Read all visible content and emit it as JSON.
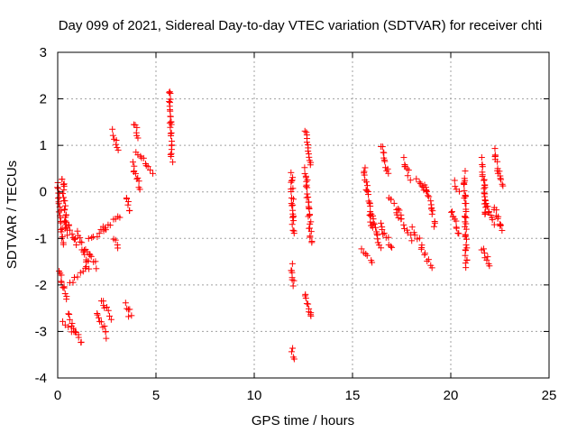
{
  "chart_data": {
    "type": "scatter",
    "title": "Day 099 of 2021, Sidereal Day-to-day VTEC variation (SDTVAR) for receiver chti",
    "xlabel": "GPS time / hours",
    "ylabel": "SDTVAR / TECUs",
    "xlim": [
      0,
      25
    ],
    "ylim": [
      -4,
      3
    ],
    "xticks": [
      0,
      5,
      10,
      15,
      20,
      25
    ],
    "yticks": [
      -4,
      -3,
      -2,
      -1,
      0,
      1,
      2,
      3
    ],
    "grid": true,
    "marker": "+",
    "color": "#ff0000",
    "segments": [
      {
        "x": [
          0.0,
          0.25
        ],
        "y": [
          0.2,
          -1.1
        ]
      },
      {
        "x": [
          0.1,
          0.45
        ],
        "y": [
          -1.7,
          -2.3
        ]
      },
      {
        "x": [
          0.25,
          0.45
        ],
        "y": [
          0.3,
          -0.9
        ]
      },
      {
        "x": [
          0.4,
          1.0
        ],
        "y": [
          -0.6,
          -1.1
        ]
      },
      {
        "x": [
          0.3,
          0.8
        ],
        "y": [
          -2.8,
          -3.0
        ]
      },
      {
        "x": [
          0.5,
          1.2
        ],
        "y": [
          -2.6,
          -3.25
        ]
      },
      {
        "x": [
          0.6,
          1.5
        ],
        "y": [
          -2.0,
          -1.6
        ]
      },
      {
        "x": [
          1.0,
          1.6
        ],
        "y": [
          -0.9,
          -1.6
        ]
      },
      {
        "x": [
          1.4,
          2.0
        ],
        "y": [
          -1.2,
          -1.6
        ]
      },
      {
        "x": [
          1.6,
          2.5
        ],
        "y": [
          -1.0,
          -0.8
        ]
      },
      {
        "x": [
          2.0,
          2.5
        ],
        "y": [
          -2.6,
          -3.1
        ]
      },
      {
        "x": [
          2.2,
          2.7
        ],
        "y": [
          -2.3,
          -2.7
        ]
      },
      {
        "x": [
          2.3,
          3.2
        ],
        "y": [
          -0.8,
          -0.5
        ]
      },
      {
        "x": [
          2.8,
          3.1
        ],
        "y": [
          -1.0,
          -1.2
        ]
      },
      {
        "x": [
          2.8,
          3.1
        ],
        "y": [
          1.3,
          0.9
        ]
      },
      {
        "x": [
          3.5,
          3.7
        ],
        "y": [
          -0.1,
          -0.4
        ]
      },
      {
        "x": [
          3.5,
          3.7
        ],
        "y": [
          -2.4,
          -2.7
        ]
      },
      {
        "x": [
          3.8,
          4.2
        ],
        "y": [
          0.6,
          0.1
        ]
      },
      {
        "x": [
          3.9,
          4.1
        ],
        "y": [
          1.5,
          1.2
        ]
      },
      {
        "x": [
          4.0,
          4.8
        ],
        "y": [
          0.9,
          0.4
        ]
      },
      {
        "x": [
          5.7,
          5.8
        ],
        "y": [
          2.2,
          0.7
        ]
      },
      {
        "x": [
          11.9,
          12.0
        ],
        "y": [
          0.4,
          -0.9
        ]
      },
      {
        "x": [
          11.9,
          12.0
        ],
        "y": [
          -1.6,
          -2.0
        ]
      },
      {
        "x": [
          11.9,
          12.0
        ],
        "y": [
          -3.4,
          -3.6
        ]
      },
      {
        "x": [
          12.6,
          12.9
        ],
        "y": [
          1.3,
          0.6
        ]
      },
      {
        "x": [
          12.6,
          12.9
        ],
        "y": [
          0.5,
          -1.1
        ]
      },
      {
        "x": [
          12.6,
          12.9
        ],
        "y": [
          -2.2,
          -2.7
        ]
      },
      {
        "x": [
          15.5,
          16.0
        ],
        "y": [
          -1.2,
          -1.5
        ]
      },
      {
        "x": [
          15.6,
          16.0
        ],
        "y": [
          0.5,
          -0.8
        ]
      },
      {
        "x": [
          16.0,
          16.4
        ],
        "y": [
          -0.5,
          -1.2
        ]
      },
      {
        "x": [
          16.4,
          17.0
        ],
        "y": [
          -0.7,
          -1.2
        ]
      },
      {
        "x": [
          16.5,
          16.8
        ],
        "y": [
          1.0,
          0.4
        ]
      },
      {
        "x": [
          16.8,
          17.5
        ],
        "y": [
          -0.1,
          -0.5
        ]
      },
      {
        "x": [
          17.2,
          18.0
        ],
        "y": [
          -0.4,
          -1.0
        ]
      },
      {
        "x": [
          17.6,
          17.9
        ],
        "y": [
          0.7,
          0.3
        ]
      },
      {
        "x": [
          18.0,
          18.5
        ],
        "y": [
          -0.8,
          -1.1
        ]
      },
      {
        "x": [
          18.3,
          18.6
        ],
        "y": [
          0.3,
          0.0
        ]
      },
      {
        "x": [
          18.5,
          19.0
        ],
        "y": [
          -1.2,
          -1.6
        ]
      },
      {
        "x": [
          18.7,
          19.2
        ],
        "y": [
          0.2,
          -0.7
        ]
      },
      {
        "x": [
          20.0,
          20.4
        ],
        "y": [
          -0.4,
          -0.9
        ]
      },
      {
        "x": [
          20.2,
          20.4
        ],
        "y": [
          0.2,
          0.0
        ]
      },
      {
        "x": [
          20.7,
          20.8
        ],
        "y": [
          0.4,
          -1.6
        ]
      },
      {
        "x": [
          21.6,
          21.8
        ],
        "y": [
          0.7,
          -0.5
        ]
      },
      {
        "x": [
          21.6,
          22.0
        ],
        "y": [
          -1.2,
          -1.6
        ]
      },
      {
        "x": [
          21.7,
          22.2
        ],
        "y": [
          -0.2,
          -0.7
        ]
      },
      {
        "x": [
          22.2,
          22.6
        ],
        "y": [
          0.9,
          0.1
        ]
      },
      {
        "x": [
          22.2,
          22.6
        ],
        "y": [
          -0.3,
          -0.8
        ]
      }
    ]
  }
}
